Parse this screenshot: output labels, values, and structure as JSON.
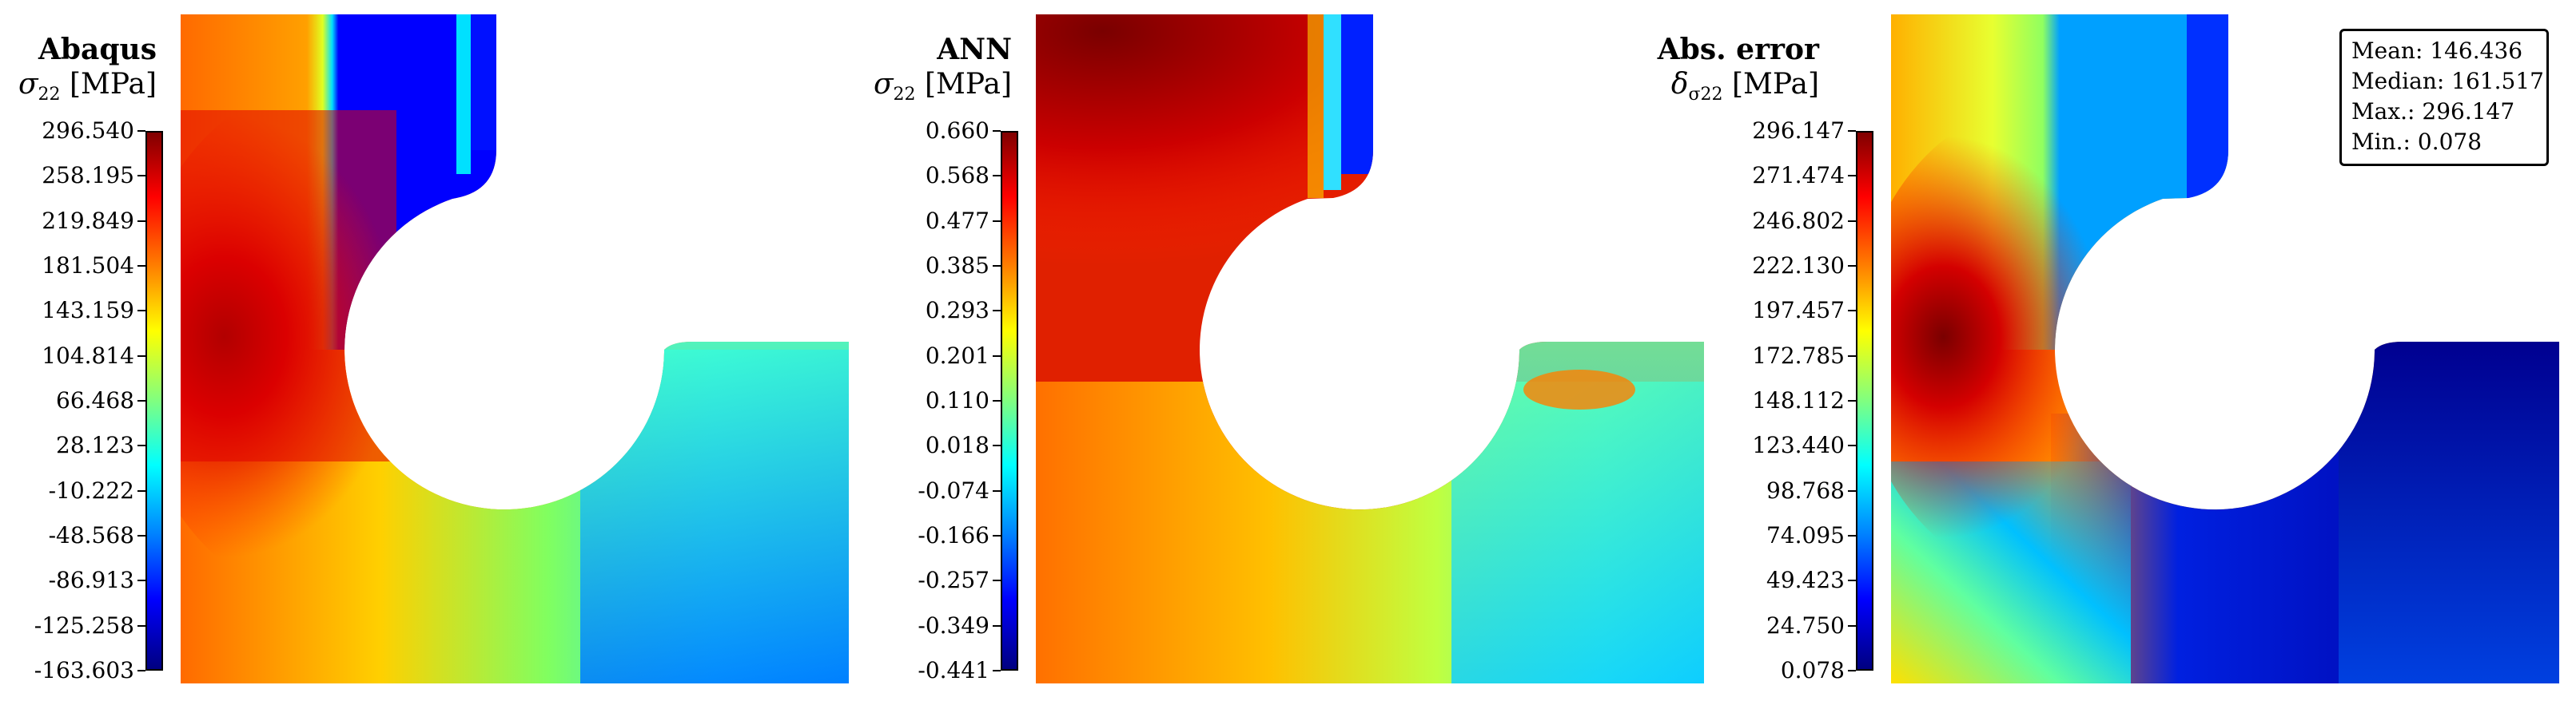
{
  "panels": [
    {
      "title": "Abaqus",
      "symbol": "σ",
      "subscript": "22",
      "unit": "[MPa]",
      "colorbar_ticks": [
        "296.540",
        "258.195",
        "219.849",
        "181.504",
        "143.159",
        "104.814",
        "66.468",
        "28.123",
        "-10.222",
        "-48.568",
        "-86.913",
        "-125.258",
        "-163.603"
      ]
    },
    {
      "title": "ANN",
      "symbol": "σ",
      "subscript": "22",
      "unit": "[MPa]",
      "colorbar_ticks": [
        "0.660",
        "0.568",
        "0.477",
        "0.385",
        "0.293",
        "0.201",
        "0.110",
        "0.018",
        "-0.074",
        "-0.166",
        "-0.257",
        "-0.349",
        "-0.441"
      ]
    },
    {
      "title": "Abs. error",
      "symbol": "δ",
      "subscript": "σ22",
      "unit": "[MPa]",
      "colorbar_ticks": [
        "296.147",
        "271.474",
        "246.802",
        "222.130",
        "197.457",
        "172.785",
        "148.112",
        "123.440",
        "98.768",
        "74.095",
        "49.423",
        "24.750",
        "0.078"
      ]
    }
  ],
  "stats": {
    "mean": "Mean: 146.436",
    "median": "Median: 161.517",
    "max": "Max.: 296.147",
    "min": "Min.: 0.078"
  },
  "colormap": "jet"
}
